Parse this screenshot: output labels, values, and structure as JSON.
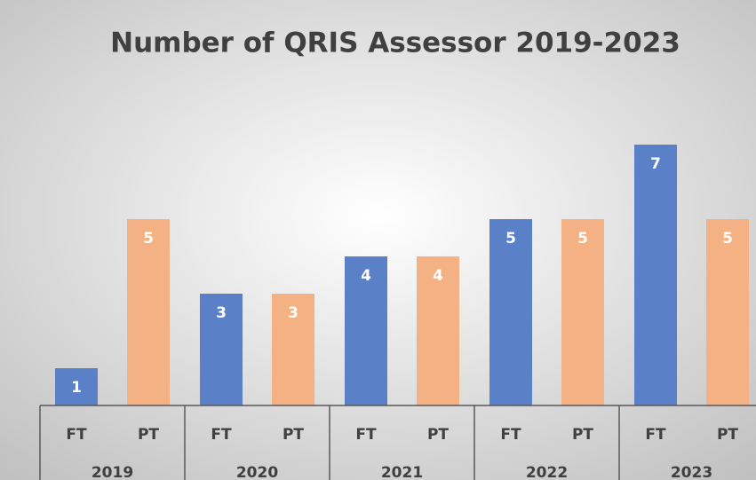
{
  "chart_data": {
    "type": "bar",
    "title": "Number of QRIS Assessor 2019-2023",
    "categories": [
      "2019",
      "2020",
      "2021",
      "2022",
      "2023"
    ],
    "series": [
      {
        "name": "FT",
        "color": "#5a80c8",
        "values": [
          1,
          3,
          4,
          5,
          7
        ]
      },
      {
        "name": "PT",
        "color": "#f4b183",
        "values": [
          5,
          3,
          4,
          5,
          5
        ]
      }
    ]
  }
}
